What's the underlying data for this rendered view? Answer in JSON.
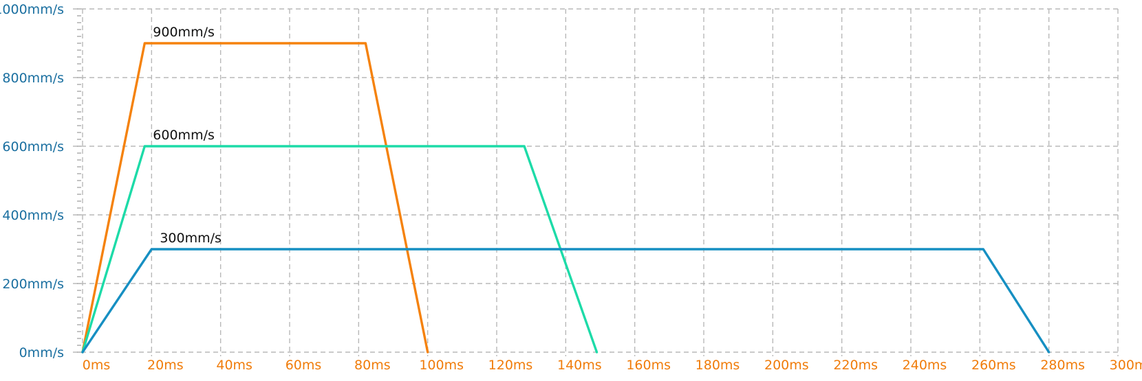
{
  "colors": {
    "y_tick_text": "#1a6fa0",
    "x_tick_text": "#f07c0a",
    "grid": "#b8b8b8",
    "axis": "#999999"
  },
  "chart_data": {
    "type": "line",
    "title": "",
    "xlabel": "",
    "ylabel": "",
    "xlim": [
      0,
      300
    ],
    "ylim": [
      0,
      1000
    ],
    "grid": true,
    "x_ticks": [
      {
        "value": 0,
        "label": "0ms"
      },
      {
        "value": 20,
        "label": "20ms"
      },
      {
        "value": 40,
        "label": "40ms"
      },
      {
        "value": 60,
        "label": "60ms"
      },
      {
        "value": 80,
        "label": "80ms"
      },
      {
        "value": 100,
        "label": "100ms"
      },
      {
        "value": 120,
        "label": "120ms"
      },
      {
        "value": 140,
        "label": "140ms"
      },
      {
        "value": 160,
        "label": "160ms"
      },
      {
        "value": 180,
        "label": "180ms"
      },
      {
        "value": 200,
        "label": "200ms"
      },
      {
        "value": 220,
        "label": "220ms"
      },
      {
        "value": 240,
        "label": "240ms"
      },
      {
        "value": 260,
        "label": "260ms"
      },
      {
        "value": 280,
        "label": "280ms"
      },
      {
        "value": 300,
        "label": "300ms"
      }
    ],
    "y_ticks": [
      {
        "value": 0,
        "label": "0mm/s"
      },
      {
        "value": 200,
        "label": "200mm/s"
      },
      {
        "value": 400,
        "label": "400mm/s"
      },
      {
        "value": 600,
        "label": "600mm/s"
      },
      {
        "value": 800,
        "label": "800mm/s"
      },
      {
        "value": 1000,
        "label": "1000mm/s"
      }
    ],
    "series": [
      {
        "label": "900mm/s",
        "color": "#f5820d",
        "points": [
          [
            0,
            0
          ],
          [
            18,
            900
          ],
          [
            82,
            900
          ],
          [
            100,
            0
          ]
        ]
      },
      {
        "label": "600mm/s",
        "color": "#1ddba8",
        "points": [
          [
            0,
            0
          ],
          [
            18,
            600
          ],
          [
            128,
            600
          ],
          [
            149,
            0
          ]
        ]
      },
      {
        "label": "300mm/s",
        "color": "#168fc2",
        "points": [
          [
            0,
            0
          ],
          [
            20,
            300
          ],
          [
            261,
            300
          ],
          [
            280,
            0
          ]
        ]
      }
    ]
  }
}
